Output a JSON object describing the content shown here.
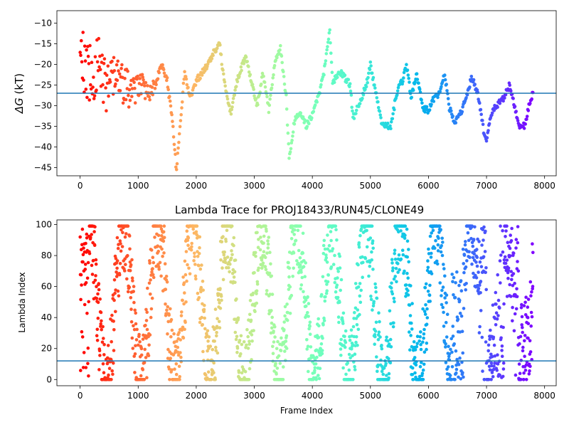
{
  "chart_data": [
    {
      "type": "scatter",
      "title": "",
      "xlabel": "",
      "ylabel_symbol": "ΔG",
      "ylabel_unit": " (kT)",
      "xlim": [
        -400,
        8200
      ],
      "ylim": [
        -47,
        -7
      ],
      "xticks": [
        0,
        1000,
        2000,
        3000,
        4000,
        5000,
        6000,
        7000,
        8000
      ],
      "yticks": [
        -10,
        -15,
        -20,
        -25,
        -30,
        -35,
        -40,
        -45
      ],
      "hline_y": -27,
      "hline_color": "#1f77b4",
      "colormap": "rainbow",
      "colormap_direction": "reversed with frame index",
      "n_frames": 7800,
      "trace_keypoints": [
        [
          0,
          -20
        ],
        [
          150,
          -23
        ],
        [
          300,
          -20
        ],
        [
          450,
          -25
        ],
        [
          600,
          -22
        ],
        [
          750,
          -25
        ],
        [
          900,
          -27
        ],
        [
          1050,
          -25
        ],
        [
          1200,
          -27
        ],
        [
          1320,
          -24
        ],
        [
          1400,
          -20
        ],
        [
          1500,
          -24
        ],
        [
          1600,
          -35
        ],
        [
          1660,
          -46
        ],
        [
          1720,
          -35
        ],
        [
          1800,
          -22
        ],
        [
          1900,
          -28
        ],
        [
          2000,
          -24
        ],
        [
          2100,
          -22
        ],
        [
          2200,
          -20
        ],
        [
          2300,
          -17
        ],
        [
          2400,
          -15
        ],
        [
          2500,
          -26
        ],
        [
          2600,
          -32
        ],
        [
          2700,
          -24
        ],
        [
          2850,
          -18
        ],
        [
          2950,
          -24
        ],
        [
          3050,
          -30
        ],
        [
          3150,
          -22
        ],
        [
          3250,
          -31
        ],
        [
          3350,
          -20
        ],
        [
          3450,
          -16
        ],
        [
          3550,
          -28
        ],
        [
          3600,
          -43
        ],
        [
          3700,
          -33
        ],
        [
          3800,
          -32
        ],
        [
          3900,
          -35
        ],
        [
          4000,
          -32
        ],
        [
          4100,
          -28
        ],
        [
          4200,
          -22
        ],
        [
          4300,
          -12
        ],
        [
          4350,
          -24
        ],
        [
          4500,
          -22
        ],
        [
          4650,
          -25
        ],
        [
          4700,
          -33
        ],
        [
          4800,
          -30
        ],
        [
          4950,
          -24
        ],
        [
          5000,
          -20
        ],
        [
          5050,
          -24
        ],
        [
          5200,
          -35
        ],
        [
          5350,
          -35
        ],
        [
          5450,
          -27
        ],
        [
          5550,
          -24
        ],
        [
          5620,
          -20
        ],
        [
          5700,
          -28
        ],
        [
          5800,
          -22
        ],
        [
          5900,
          -31
        ],
        [
          6000,
          -31
        ],
        [
          6100,
          -28
        ],
        [
          6200,
          -27
        ],
        [
          6280,
          -22
        ],
        [
          6350,
          -30
        ],
        [
          6450,
          -34
        ],
        [
          6550,
          -32
        ],
        [
          6650,
          -28
        ],
        [
          6750,
          -23
        ],
        [
          6850,
          -27
        ],
        [
          6950,
          -36
        ],
        [
          7000,
          -38
        ],
        [
          7100,
          -31
        ],
        [
          7300,
          -28
        ],
        [
          7400,
          -25
        ],
        [
          7480,
          -30
        ],
        [
          7550,
          -35
        ],
        [
          7650,
          -35
        ],
        [
          7750,
          -29
        ],
        [
          7800,
          -27
        ]
      ]
    },
    {
      "type": "scatter",
      "title": "Lambda Trace for PROJ18433/RUN45/CLONE49",
      "xlabel": "Frame Index",
      "ylabel": "Lambda Index",
      "xlim": [
        -400,
        8200
      ],
      "ylim": [
        -4,
        103
      ],
      "xticks": [
        0,
        1000,
        2000,
        3000,
        4000,
        5000,
        6000,
        7000,
        8000
      ],
      "yticks": [
        0,
        20,
        40,
        60,
        80,
        100
      ],
      "hline_y": 12,
      "hline_color": "#1f77b4",
      "colormap": "rainbow",
      "colormap_direction": "reversed with frame index",
      "n_frames": 7800,
      "lambda_min": 0,
      "lambda_max": 99,
      "dense_band_regions": [
        [
          6400,
          6600,
          0,
          70
        ],
        [
          6750,
          7000,
          55,
          99
        ],
        [
          7050,
          7300,
          0,
          50
        ],
        [
          7350,
          7550,
          45,
          99
        ],
        [
          7600,
          7780,
          0,
          55
        ]
      ]
    }
  ]
}
